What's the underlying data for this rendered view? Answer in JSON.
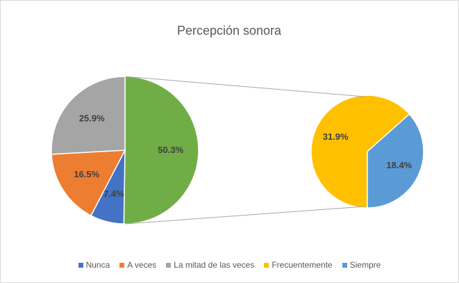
{
  "chart_data": {
    "type": "pie",
    "title": "Percepción sonora",
    "categories": [
      "Nunca",
      "A veces",
      "La mitad de las veces",
      "Frecuentemente",
      "Siempre"
    ],
    "values": [
      7.4,
      16.5,
      25.9,
      31.9,
      18.4
    ],
    "value_labels": [
      "7.4%",
      "16.5%",
      "25.9%",
      "31.9%",
      "18.4%"
    ],
    "colors": [
      "#4472c4",
      "#ed7d31",
      "#a5a5a5",
      "#ffc000",
      "#5b9bd5"
    ],
    "other_value": 50.3,
    "other_value_label": "50.3%",
    "other_color": "#70ad47",
    "legend": "bottom"
  }
}
